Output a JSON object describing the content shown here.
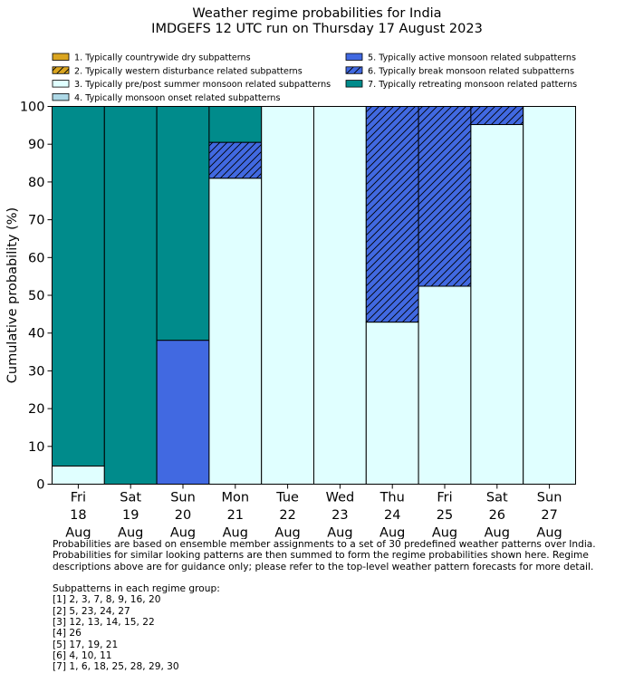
{
  "chart_data": {
    "type": "bar",
    "title": "Weather regime probabilities for India",
    "subtitle": "IMDGEFS 12 UTC run on Thursday 17 August 2023",
    "ylabel": "Cumulative probability (%)",
    "xlabel": "",
    "ylim": [
      0,
      100
    ],
    "yticks": [
      0,
      10,
      20,
      30,
      40,
      50,
      60,
      70,
      80,
      90,
      100
    ],
    "grid": false,
    "stacked": true,
    "categories": [
      [
        "Fri",
        "18",
        "Aug"
      ],
      [
        "Sat",
        "19",
        "Aug"
      ],
      [
        "Sun",
        "20",
        "Aug"
      ],
      [
        "Mon",
        "21",
        "Aug"
      ],
      [
        "Tue",
        "22",
        "Aug"
      ],
      [
        "Wed",
        "23",
        "Aug"
      ],
      [
        "Thu",
        "24",
        "Aug"
      ],
      [
        "Fri",
        "25",
        "Aug"
      ],
      [
        "Sat",
        "26",
        "Aug"
      ],
      [
        "Sun",
        "27",
        "Aug"
      ]
    ],
    "series": [
      {
        "name": "1. Typically countrywide dry subpatterns",
        "color": "#DAA520",
        "hatch": false,
        "values": [
          0,
          0,
          0,
          0,
          0,
          0,
          0,
          0,
          0,
          0
        ]
      },
      {
        "name": "2. Typically western disturbance related subpatterns",
        "color": "#DAA520",
        "hatch": true,
        "values": [
          0,
          0,
          0,
          0,
          0,
          0,
          0,
          0,
          0,
          0
        ]
      },
      {
        "name": "3. Typically pre/post summer monsoon related subpatterns",
        "color": "#E0FFFF",
        "hatch": false,
        "values": [
          4.8,
          0,
          0,
          81,
          100,
          100,
          42.9,
          52.4,
          95.2,
          100
        ]
      },
      {
        "name": "4. Typically monsoon onset related subpatterns",
        "color": "#ADD8E6",
        "hatch": false,
        "values": [
          0,
          0,
          0,
          0,
          0,
          0,
          0,
          0,
          0,
          0
        ]
      },
      {
        "name": "5. Typically active monsoon related subpatterns",
        "color": "#4169E1",
        "hatch": false,
        "values": [
          0,
          0,
          38.1,
          0,
          0,
          0,
          0,
          0,
          0,
          0
        ]
      },
      {
        "name": "6. Typically break monsoon related subpatterns",
        "color": "#4169E1",
        "hatch": true,
        "values": [
          0,
          0,
          0,
          9.5,
          0,
          0,
          57.1,
          47.6,
          4.8,
          0
        ]
      },
      {
        "name": "7. Typically retreating monsoon related patterns",
        "color": "#008B8B",
        "hatch": false,
        "values": [
          95.2,
          100,
          61.9,
          9.5,
          0,
          0,
          0,
          0,
          0,
          0
        ]
      }
    ],
    "legend_position": "top, two columns"
  },
  "notes": {
    "line1": "Probabilities are based on ensemble member assignments to a set of 30 predefined weather patterns over India.",
    "line2": "Probabilities for similar looking patterns are then summed to form the regime probabilities shown here. Regime",
    "line3": "descriptions above are for guidance only; please refer to the top-level weather pattern forecasts for more detail.",
    "groups_heading": "Subpatterns in each regime group:",
    "groups": [
      "[1] 2, 3, 7, 8, 9, 16, 20",
      "[2] 5, 23, 24, 27",
      "[3] 12, 13, 14, 15, 22",
      "[4] 26",
      "[5] 17, 19, 21",
      "[6] 4, 10, 11",
      "[7] 1, 6, 18, 25, 28, 29, 30"
    ]
  }
}
